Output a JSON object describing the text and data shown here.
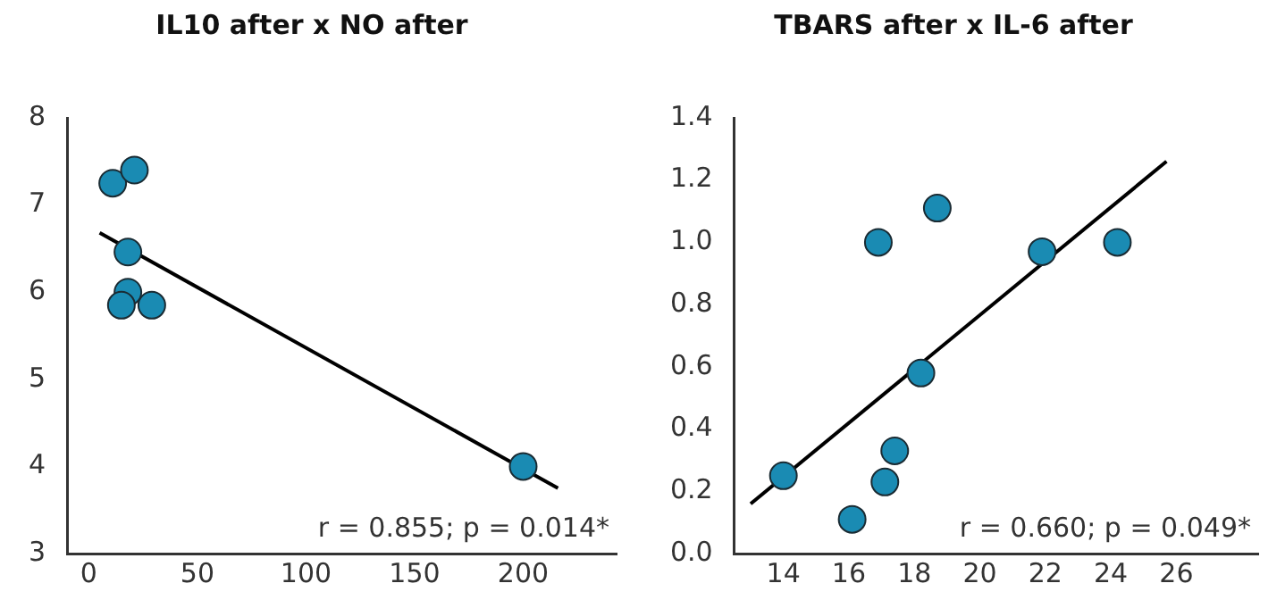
{
  "chart_data": [
    {
      "type": "scatter",
      "title": "IL10 after x NO after",
      "series": [
        {
          "marker": "circle",
          "color": "#1a8bb3",
          "x": [
            11,
            21,
            18,
            18,
            15,
            29,
            200
          ],
          "values": [
            7.25,
            7.4,
            6.46,
            6.0,
            5.85,
            5.85,
            4.0
          ]
        },
        {
          "type": "line",
          "color": "#000000",
          "x": [
            5,
            216
          ],
          "values": [
            6.68,
            3.75
          ]
        }
      ],
      "xlim": [
        -10,
        243
      ],
      "xticks": [
        0,
        50,
        100,
        150,
        200
      ],
      "ylim": [
        3,
        8
      ],
      "yticks": [
        3,
        4,
        5,
        6,
        7,
        8
      ],
      "grid": false,
      "legend": false,
      "annotations": [
        "r = 0.855; p = 0.014*"
      ]
    },
    {
      "type": "scatter",
      "title": "TBARS after x IL-6 after",
      "series": [
        {
          "marker": "circle",
          "color": "#1a8bb3",
          "x": [
            14,
            16.1,
            17.1,
            17.4,
            16.9,
            18.7,
            18.2,
            21.9,
            24.2
          ],
          "values": [
            0.25,
            0.11,
            0.23,
            0.33,
            1.0,
            1.11,
            0.58,
            0.97,
            1.0
          ]
        },
        {
          "type": "line",
          "color": "#000000",
          "x": [
            13.0,
            25.7
          ],
          "values": [
            0.16,
            1.26
          ]
        }
      ],
      "xlim": [
        12.5,
        28.5
      ],
      "xticks": [
        14,
        16,
        18,
        20,
        22,
        24,
        26
      ],
      "ylim": [
        0,
        1.4
      ],
      "yticks": [
        {
          "value": 0,
          "label": "0.0"
        },
        0.2,
        0.4,
        0.6,
        0.8,
        {
          "value": 1,
          "label": "1.0"
        },
        1.2,
        1.4
      ],
      "grid": false,
      "legend": false,
      "annotations": [
        "r = 0.660; p = 0.049*"
      ]
    }
  ]
}
